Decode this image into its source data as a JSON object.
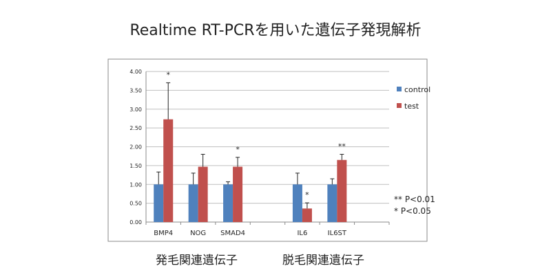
{
  "title": "Realtime RT-PCRを用いた遺伝子発現解析",
  "group_labels": [
    "発毛関連遺伝子",
    "脱毛関連遺伝子"
  ],
  "significance_notes": {
    "double": "** P<0.01",
    "single": "* P<0.05"
  },
  "chart_data": {
    "type": "bar",
    "title": "Realtime RT-PCRを用いた遺伝子発現解析",
    "xlabel": "",
    "ylabel": "",
    "ylim": [
      0,
      4
    ],
    "yticks": [
      "0.00",
      "0.50",
      "1.00",
      "1.50",
      "2.00",
      "2.50",
      "3.00",
      "3.50",
      "4.00"
    ],
    "grid": true,
    "legend_position": "right",
    "categories": [
      "BMP4",
      "NOG",
      "SMAD4",
      "",
      "IL6",
      "IL6ST",
      ""
    ],
    "series": [
      {
        "name": "control",
        "color": "#4f81bd",
        "values": [
          1.0,
          1.0,
          1.0,
          null,
          1.0,
          1.0,
          null
        ],
        "errors": [
          0.33,
          0.3,
          0.07,
          null,
          0.3,
          0.15,
          null
        ]
      },
      {
        "name": "test",
        "color": "#c0504d",
        "values": [
          2.73,
          1.47,
          1.47,
          null,
          0.36,
          1.65,
          null
        ],
        "errors": [
          0.97,
          0.33,
          0.25,
          null,
          0.15,
          0.15,
          null
        ]
      }
    ],
    "annotations": [
      {
        "category": "BMP4",
        "text": "*"
      },
      {
        "category": "SMAD4",
        "text": "*"
      },
      {
        "category": "IL6",
        "text": "*"
      },
      {
        "category": "IL6ST",
        "text": "**"
      }
    ]
  }
}
